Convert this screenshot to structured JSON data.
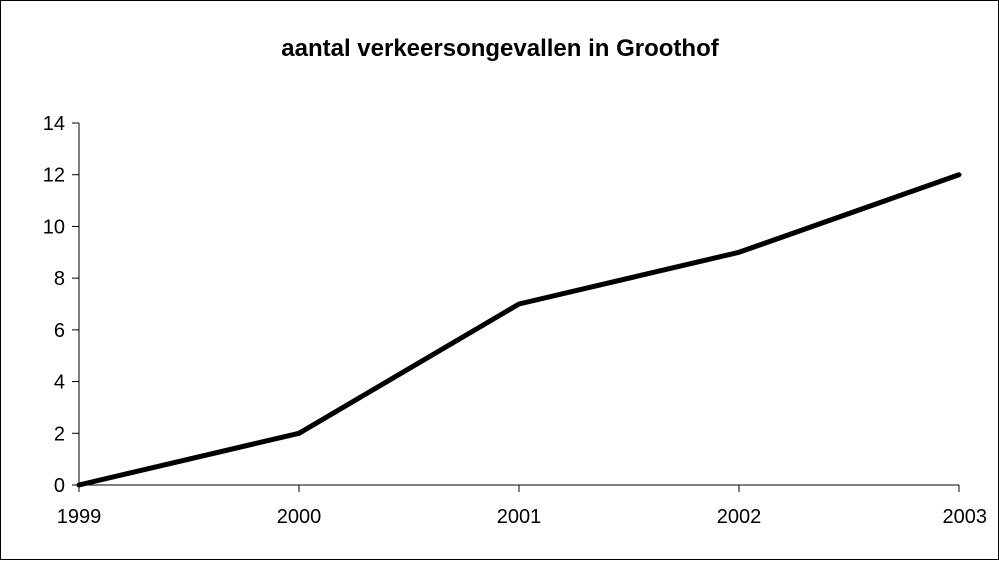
{
  "chart_data": {
    "type": "line",
    "title": "aantal verkeersongevallen in Groothof",
    "xlabel": "",
    "ylabel": "",
    "categories": [
      "1999",
      "2000",
      "2001",
      "2002",
      "2003"
    ],
    "series": [
      {
        "values": [
          0,
          2,
          7,
          9,
          12
        ]
      }
    ],
    "ylim": [
      0,
      14
    ],
    "yticks": [
      0,
      2,
      4,
      6,
      8,
      10,
      12,
      14
    ],
    "grid": false,
    "legend": "none",
    "colors": {
      "line": "#000000",
      "axis": "#000000",
      "background": "#ffffff"
    }
  }
}
